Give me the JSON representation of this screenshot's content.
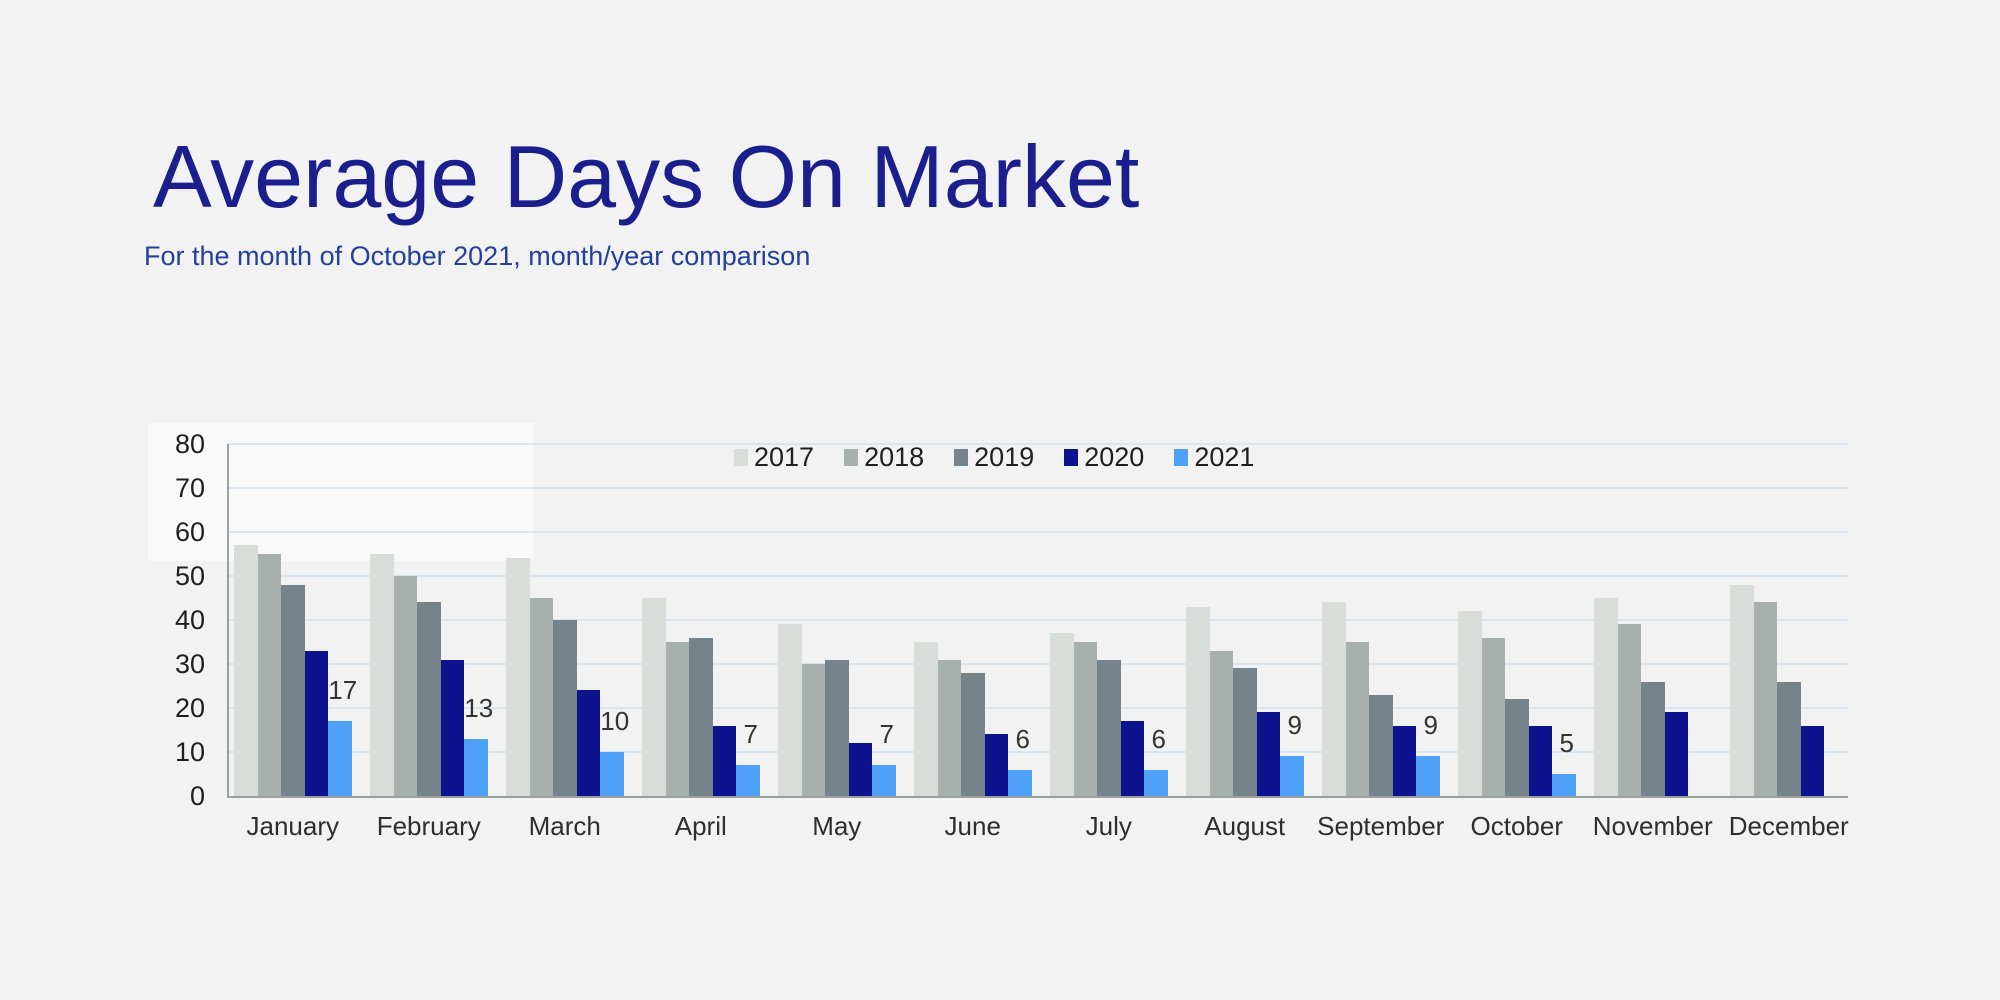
{
  "title": "Average Days On Market",
  "subtitle": "For the month of October 2021, month/year comparison",
  "colors": {
    "background": "#f1f2f1",
    "title": "#1b1f8e",
    "subtitle": "#24409c",
    "grid": "#dbe5f0",
    "axis": "#9aa1a1",
    "tick_label": "#1f1f1f",
    "month_label": "#2e2e2e",
    "data_label": "#333333",
    "legend_label": "#1f1f1f"
  },
  "chart_data": {
    "type": "bar",
    "categories": [
      "January",
      "February",
      "March",
      "April",
      "May",
      "June",
      "July",
      "August",
      "September",
      "October",
      "November",
      "December"
    ],
    "series": [
      {
        "name": "2017",
        "color": "#d8ddda",
        "values": [
          57,
          55,
          54,
          45,
          39,
          35,
          37,
          43,
          44,
          42,
          45,
          48
        ]
      },
      {
        "name": "2018",
        "color": "#a7b0ac",
        "values": [
          55,
          50,
          45,
          35,
          30,
          31,
          35,
          33,
          35,
          36,
          39,
          44
        ]
      },
      {
        "name": "2019",
        "color": "#76838b",
        "values": [
          48,
          44,
          40,
          36,
          31,
          28,
          31,
          29,
          23,
          22,
          26,
          26
        ]
      },
      {
        "name": "2020",
        "color": "#0d128f",
        "values": [
          33,
          31,
          24,
          16,
          12,
          14,
          17,
          19,
          16,
          16,
          19,
          16
        ]
      },
      {
        "name": "2021",
        "color": "#4ea1f6",
        "values": [
          17,
          13,
          10,
          7,
          7,
          6,
          6,
          9,
          9,
          5,
          null,
          null
        ],
        "data_labels": true
      }
    ],
    "title": "Average Days On Market",
    "xlabel": "",
    "ylabel": "",
    "ylim": [
      0,
      80
    ],
    "yticks": [
      0,
      10,
      20,
      30,
      40,
      50,
      60,
      70,
      80
    ],
    "grid": true,
    "legend_position": "top-inside"
  }
}
